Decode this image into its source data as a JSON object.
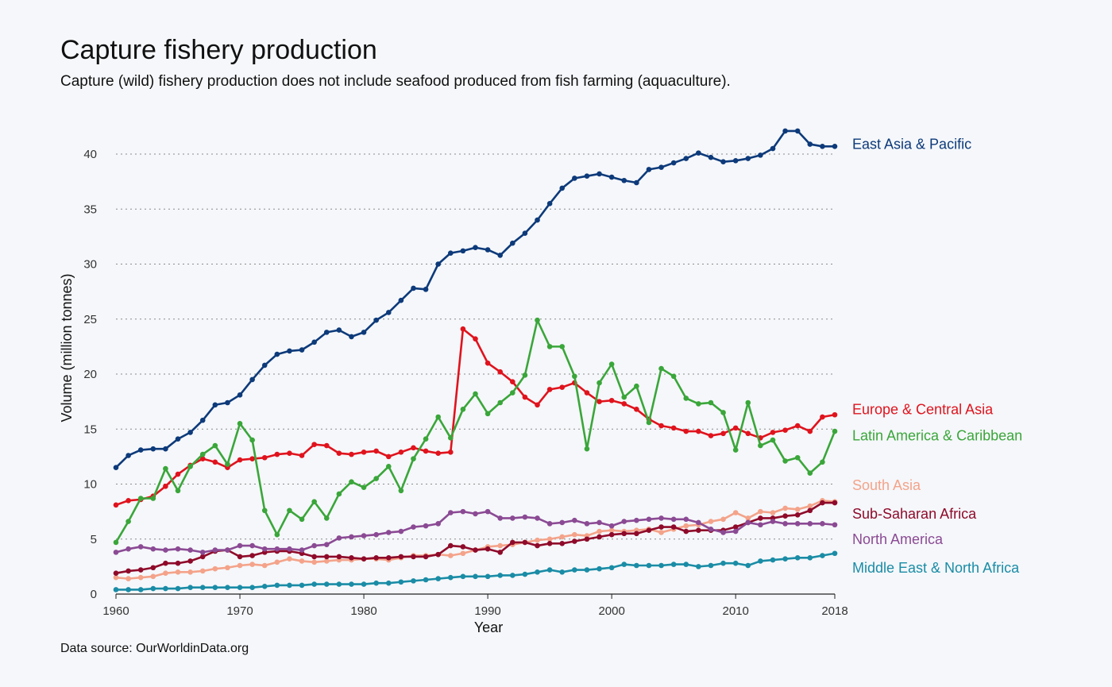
{
  "chart_data": {
    "type": "line",
    "title": "Capture fishery production",
    "subtitle": "Capture (wild) fishery production does not include seafood produced from fish farming (aquaculture).",
    "source": "Data source: OurWorldinData.org",
    "xlabel": "Year",
    "ylabel": "Volume (million tonnes)",
    "xlim": [
      1960,
      2018
    ],
    "ylim": [
      0,
      42
    ],
    "xticks": [
      1960,
      1970,
      1980,
      1990,
      2000,
      2010,
      2018
    ],
    "yticks": [
      0,
      5,
      10,
      15,
      20,
      25,
      30,
      35,
      40
    ],
    "grid": "horizontal dotted",
    "legend": "direct labels at right",
    "x": [
      1960,
      1961,
      1962,
      1963,
      1964,
      1965,
      1966,
      1967,
      1968,
      1969,
      1970,
      1971,
      1972,
      1973,
      1974,
      1975,
      1976,
      1977,
      1978,
      1979,
      1980,
      1981,
      1982,
      1983,
      1984,
      1985,
      1986,
      1987,
      1988,
      1989,
      1990,
      1991,
      1992,
      1993,
      1994,
      1995,
      1996,
      1997,
      1998,
      1999,
      2000,
      2001,
      2002,
      2003,
      2004,
      2005,
      2006,
      2007,
      2008,
      2009,
      2010,
      2011,
      2012,
      2013,
      2014,
      2015,
      2016,
      2017,
      2018
    ],
    "series": [
      {
        "name": "East Asia & Pacific",
        "color": "#0d3a7a",
        "values": [
          11.5,
          12.6,
          13.1,
          13.2,
          13.2,
          14.1,
          14.7,
          15.8,
          17.2,
          17.4,
          18.1,
          19.5,
          20.8,
          21.8,
          22.1,
          22.2,
          22.9,
          23.8,
          24.0,
          23.4,
          23.8,
          24.9,
          25.6,
          26.7,
          27.8,
          27.7,
          30.0,
          31.0,
          31.2,
          31.5,
          31.3,
          30.8,
          31.9,
          32.8,
          34.0,
          35.5,
          36.9,
          37.8,
          38.0,
          38.2,
          37.9,
          37.6,
          37.4,
          38.6,
          38.8,
          39.2,
          39.6,
          40.1,
          39.7,
          39.3,
          39.4,
          39.6,
          39.9,
          40.5,
          42.1,
          42.1,
          40.9,
          40.7,
          40.7
        ]
      },
      {
        "name": "Europe & Central Asia",
        "color": "#e0131d",
        "values": [
          8.1,
          8.5,
          8.6,
          8.9,
          9.8,
          10.9,
          11.7,
          12.3,
          12.0,
          11.5,
          12.2,
          12.3,
          12.4,
          12.7,
          12.8,
          12.6,
          13.6,
          13.5,
          12.8,
          12.7,
          12.9,
          13.0,
          12.5,
          12.9,
          13.3,
          13.0,
          12.8,
          12.9,
          24.1,
          23.2,
          21.0,
          20.2,
          19.3,
          17.9,
          17.2,
          18.6,
          18.8,
          19.2,
          18.3,
          17.5,
          17.6,
          17.3,
          16.8,
          15.9,
          15.3,
          15.1,
          14.8,
          14.8,
          14.4,
          14.6,
          15.1,
          14.6,
          14.2,
          14.7,
          14.9,
          15.3,
          14.8,
          16.1,
          16.3
        ]
      },
      {
        "name": "Latin America & Caribbean",
        "color": "#3aa63a",
        "values": [
          4.7,
          6.6,
          8.7,
          8.7,
          11.4,
          9.4,
          11.6,
          12.7,
          13.5,
          11.8,
          15.5,
          14.0,
          7.6,
          5.4,
          7.6,
          6.8,
          8.4,
          6.9,
          9.1,
          10.2,
          9.7,
          10.5,
          11.6,
          9.4,
          12.3,
          14.1,
          16.1,
          14.2,
          16.8,
          18.2,
          16.4,
          17.4,
          18.3,
          19.9,
          24.9,
          22.5,
          22.5,
          19.8,
          13.2,
          19.2,
          20.9,
          17.9,
          18.9,
          15.6,
          20.5,
          19.8,
          17.8,
          17.3,
          17.4,
          16.5,
          13.1,
          17.4,
          13.5,
          14.0,
          12.1,
          12.4,
          11.0,
          12.0,
          14.8
        ]
      },
      {
        "name": "South Asia",
        "color": "#f4a38a",
        "values": [
          1.5,
          1.4,
          1.5,
          1.6,
          1.9,
          2.0,
          2.0,
          2.1,
          2.3,
          2.4,
          2.6,
          2.7,
          2.6,
          2.9,
          3.2,
          3.0,
          2.9,
          3.0,
          3.1,
          3.1,
          3.2,
          3.2,
          3.1,
          3.3,
          3.5,
          3.5,
          3.6,
          3.5,
          3.7,
          4.0,
          4.3,
          4.4,
          4.5,
          4.7,
          4.9,
          5.0,
          5.2,
          5.4,
          5.3,
          5.7,
          5.8,
          5.7,
          5.8,
          5.9,
          5.6,
          5.9,
          6.2,
          6.3,
          6.6,
          6.8,
          7.4,
          6.9,
          7.5,
          7.4,
          7.8,
          7.7,
          8.0,
          8.5,
          8.4
        ]
      },
      {
        "name": "Sub-Saharan Africa",
        "color": "#8f0a2a",
        "values": [
          1.9,
          2.1,
          2.2,
          2.4,
          2.8,
          2.8,
          3.0,
          3.4,
          3.9,
          4.0,
          3.4,
          3.5,
          3.8,
          3.9,
          3.9,
          3.7,
          3.4,
          3.4,
          3.4,
          3.3,
          3.2,
          3.3,
          3.3,
          3.4,
          3.4,
          3.4,
          3.6,
          4.4,
          4.3,
          4.0,
          4.1,
          3.8,
          4.7,
          4.7,
          4.4,
          4.6,
          4.6,
          4.8,
          5.0,
          5.2,
          5.4,
          5.5,
          5.5,
          5.8,
          6.1,
          6.1,
          5.7,
          5.8,
          5.8,
          5.8,
          6.1,
          6.5,
          6.9,
          6.9,
          7.1,
          7.2,
          7.6,
          8.3,
          8.3
        ]
      },
      {
        "name": "North America",
        "color": "#8b4a94",
        "values": [
          3.8,
          4.1,
          4.3,
          4.1,
          4.0,
          4.1,
          4.0,
          3.8,
          4.0,
          4.0,
          4.4,
          4.4,
          4.1,
          4.1,
          4.1,
          4.0,
          4.4,
          4.5,
          5.1,
          5.2,
          5.3,
          5.4,
          5.6,
          5.7,
          6.1,
          6.2,
          6.4,
          7.4,
          7.5,
          7.3,
          7.5,
          6.9,
          6.9,
          7.0,
          6.9,
          6.4,
          6.5,
          6.7,
          6.4,
          6.5,
          6.2,
          6.6,
          6.7,
          6.8,
          6.9,
          6.8,
          6.8,
          6.5,
          5.9,
          5.6,
          5.7,
          6.5,
          6.3,
          6.6,
          6.4,
          6.4,
          6.4,
          6.4,
          6.3
        ]
      },
      {
        "name": "Middle East & North Africa",
        "color": "#1a8ca6",
        "values": [
          0.4,
          0.4,
          0.4,
          0.5,
          0.5,
          0.5,
          0.6,
          0.6,
          0.6,
          0.6,
          0.6,
          0.6,
          0.7,
          0.8,
          0.8,
          0.8,
          0.9,
          0.9,
          0.9,
          0.9,
          0.9,
          1.0,
          1.0,
          1.1,
          1.2,
          1.3,
          1.4,
          1.5,
          1.6,
          1.6,
          1.6,
          1.7,
          1.7,
          1.8,
          2.0,
          2.2,
          2.0,
          2.2,
          2.2,
          2.3,
          2.4,
          2.7,
          2.6,
          2.6,
          2.6,
          2.7,
          2.7,
          2.5,
          2.6,
          2.8,
          2.8,
          2.6,
          3.0,
          3.1,
          3.2,
          3.3,
          3.3,
          3.5,
          3.7
        ]
      }
    ]
  }
}
